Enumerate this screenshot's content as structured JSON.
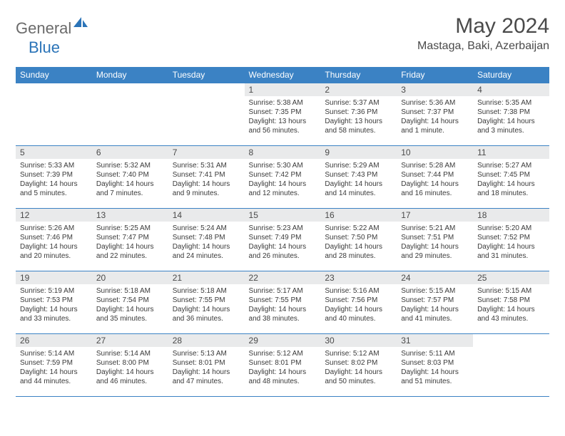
{
  "brand": {
    "part1": "General",
    "part2": "Blue"
  },
  "header": {
    "month_title": "May 2024",
    "location": "Mastaga, Baki, Azerbaijan"
  },
  "colors": {
    "header_bg": "#3b82c4",
    "header_text": "#ffffff",
    "daynum_bg": "#e9eaeb",
    "border": "#3b82c4",
    "body_text": "#3a3a3a",
    "title_text": "#4a4a4a",
    "logo_gray": "#6b6b6b",
    "logo_blue": "#2b74b8"
  },
  "day_headers": [
    "Sunday",
    "Monday",
    "Tuesday",
    "Wednesday",
    "Thursday",
    "Friday",
    "Saturday"
  ],
  "weeks": [
    [
      null,
      null,
      null,
      {
        "n": "1",
        "sr": "Sunrise: 5:38 AM",
        "ss": "Sunset: 7:35 PM",
        "dl": "Daylight: 13 hours and 56 minutes."
      },
      {
        "n": "2",
        "sr": "Sunrise: 5:37 AM",
        "ss": "Sunset: 7:36 PM",
        "dl": "Daylight: 13 hours and 58 minutes."
      },
      {
        "n": "3",
        "sr": "Sunrise: 5:36 AM",
        "ss": "Sunset: 7:37 PM",
        "dl": "Daylight: 14 hours and 1 minute."
      },
      {
        "n": "4",
        "sr": "Sunrise: 5:35 AM",
        "ss": "Sunset: 7:38 PM",
        "dl": "Daylight: 14 hours and 3 minutes."
      }
    ],
    [
      {
        "n": "5",
        "sr": "Sunrise: 5:33 AM",
        "ss": "Sunset: 7:39 PM",
        "dl": "Daylight: 14 hours and 5 minutes."
      },
      {
        "n": "6",
        "sr": "Sunrise: 5:32 AM",
        "ss": "Sunset: 7:40 PM",
        "dl": "Daylight: 14 hours and 7 minutes."
      },
      {
        "n": "7",
        "sr": "Sunrise: 5:31 AM",
        "ss": "Sunset: 7:41 PM",
        "dl": "Daylight: 14 hours and 9 minutes."
      },
      {
        "n": "8",
        "sr": "Sunrise: 5:30 AM",
        "ss": "Sunset: 7:42 PM",
        "dl": "Daylight: 14 hours and 12 minutes."
      },
      {
        "n": "9",
        "sr": "Sunrise: 5:29 AM",
        "ss": "Sunset: 7:43 PM",
        "dl": "Daylight: 14 hours and 14 minutes."
      },
      {
        "n": "10",
        "sr": "Sunrise: 5:28 AM",
        "ss": "Sunset: 7:44 PM",
        "dl": "Daylight: 14 hours and 16 minutes."
      },
      {
        "n": "11",
        "sr": "Sunrise: 5:27 AM",
        "ss": "Sunset: 7:45 PM",
        "dl": "Daylight: 14 hours and 18 minutes."
      }
    ],
    [
      {
        "n": "12",
        "sr": "Sunrise: 5:26 AM",
        "ss": "Sunset: 7:46 PM",
        "dl": "Daylight: 14 hours and 20 minutes."
      },
      {
        "n": "13",
        "sr": "Sunrise: 5:25 AM",
        "ss": "Sunset: 7:47 PM",
        "dl": "Daylight: 14 hours and 22 minutes."
      },
      {
        "n": "14",
        "sr": "Sunrise: 5:24 AM",
        "ss": "Sunset: 7:48 PM",
        "dl": "Daylight: 14 hours and 24 minutes."
      },
      {
        "n": "15",
        "sr": "Sunrise: 5:23 AM",
        "ss": "Sunset: 7:49 PM",
        "dl": "Daylight: 14 hours and 26 minutes."
      },
      {
        "n": "16",
        "sr": "Sunrise: 5:22 AM",
        "ss": "Sunset: 7:50 PM",
        "dl": "Daylight: 14 hours and 28 minutes."
      },
      {
        "n": "17",
        "sr": "Sunrise: 5:21 AM",
        "ss": "Sunset: 7:51 PM",
        "dl": "Daylight: 14 hours and 29 minutes."
      },
      {
        "n": "18",
        "sr": "Sunrise: 5:20 AM",
        "ss": "Sunset: 7:52 PM",
        "dl": "Daylight: 14 hours and 31 minutes."
      }
    ],
    [
      {
        "n": "19",
        "sr": "Sunrise: 5:19 AM",
        "ss": "Sunset: 7:53 PM",
        "dl": "Daylight: 14 hours and 33 minutes."
      },
      {
        "n": "20",
        "sr": "Sunrise: 5:18 AM",
        "ss": "Sunset: 7:54 PM",
        "dl": "Daylight: 14 hours and 35 minutes."
      },
      {
        "n": "21",
        "sr": "Sunrise: 5:18 AM",
        "ss": "Sunset: 7:55 PM",
        "dl": "Daylight: 14 hours and 36 minutes."
      },
      {
        "n": "22",
        "sr": "Sunrise: 5:17 AM",
        "ss": "Sunset: 7:55 PM",
        "dl": "Daylight: 14 hours and 38 minutes."
      },
      {
        "n": "23",
        "sr": "Sunrise: 5:16 AM",
        "ss": "Sunset: 7:56 PM",
        "dl": "Daylight: 14 hours and 40 minutes."
      },
      {
        "n": "24",
        "sr": "Sunrise: 5:15 AM",
        "ss": "Sunset: 7:57 PM",
        "dl": "Daylight: 14 hours and 41 minutes."
      },
      {
        "n": "25",
        "sr": "Sunrise: 5:15 AM",
        "ss": "Sunset: 7:58 PM",
        "dl": "Daylight: 14 hours and 43 minutes."
      }
    ],
    [
      {
        "n": "26",
        "sr": "Sunrise: 5:14 AM",
        "ss": "Sunset: 7:59 PM",
        "dl": "Daylight: 14 hours and 44 minutes."
      },
      {
        "n": "27",
        "sr": "Sunrise: 5:14 AM",
        "ss": "Sunset: 8:00 PM",
        "dl": "Daylight: 14 hours and 46 minutes."
      },
      {
        "n": "28",
        "sr": "Sunrise: 5:13 AM",
        "ss": "Sunset: 8:01 PM",
        "dl": "Daylight: 14 hours and 47 minutes."
      },
      {
        "n": "29",
        "sr": "Sunrise: 5:12 AM",
        "ss": "Sunset: 8:01 PM",
        "dl": "Daylight: 14 hours and 48 minutes."
      },
      {
        "n": "30",
        "sr": "Sunrise: 5:12 AM",
        "ss": "Sunset: 8:02 PM",
        "dl": "Daylight: 14 hours and 50 minutes."
      },
      {
        "n": "31",
        "sr": "Sunrise: 5:11 AM",
        "ss": "Sunset: 8:03 PM",
        "dl": "Daylight: 14 hours and 51 minutes."
      },
      null
    ]
  ]
}
